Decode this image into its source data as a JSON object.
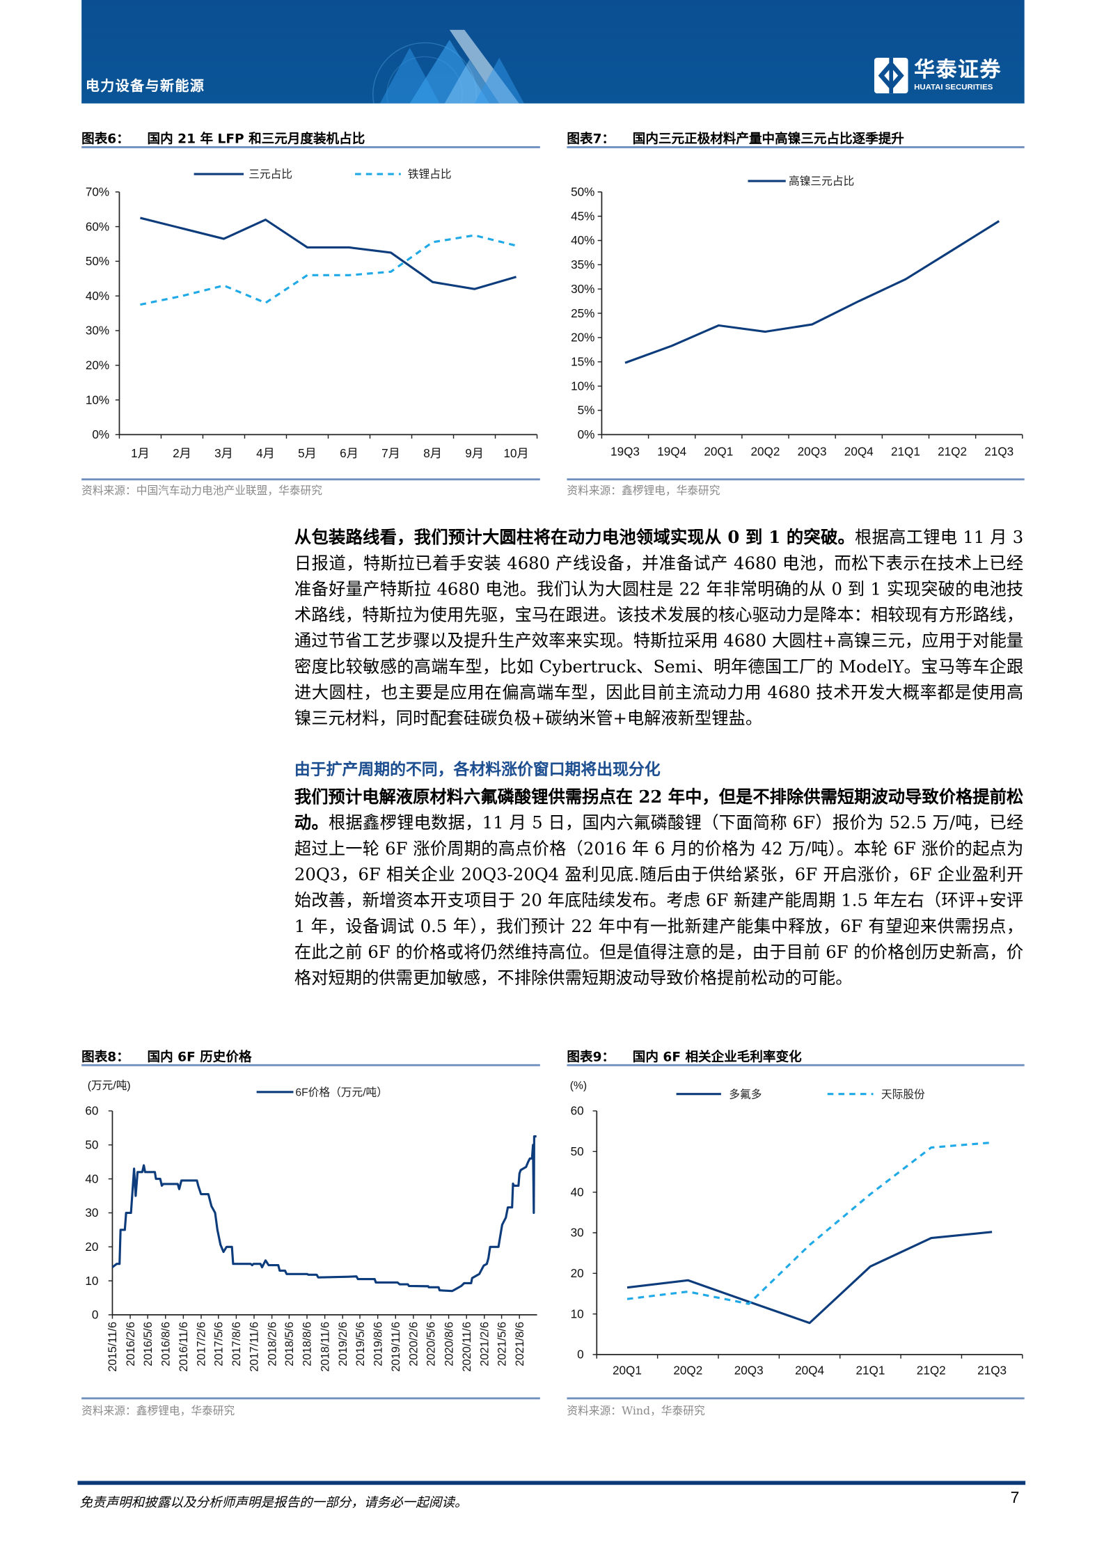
{
  "header": {
    "section": "电力设备与新能源",
    "logo_cn": "华泰证券",
    "logo_en": "HUATAI SECURITIES",
    "band_color": "#0b4f92"
  },
  "figures": [
    {
      "num": "图表6：",
      "title": "国内 21 年 LFP 和三元月度装机占比",
      "source": "资料来源：中国汽车动力电池产业联盟，华泰研究"
    },
    {
      "num": "图表7：",
      "title": "国内三元正极材料产量中高镍三元占比逐季提升",
      "source": "资料来源：鑫椤锂电，华泰研究"
    },
    {
      "num": "图表8：",
      "title": "国内 6F 历史价格",
      "source": "资料来源：鑫椤锂电，华泰研究"
    },
    {
      "num": "图表9：",
      "title": "国内 6F 相关企业毛利率变化",
      "source": "资料来源：Wind，华泰研究"
    }
  ],
  "body": {
    "p1_bold": "从包装路线看，我们预计大圆柱将在动力电池领域实现从 0 到 1 的突破。",
    "p1_text": "根据高工锂电 11 月 3 日报道，特斯拉已着手安装 4680 产线设备，并准备试产 4680 电池，而松下表示在技术上已经准备好量产特斯拉 4680 电池。我们认为大圆柱是 22 年非常明确的从 0 到 1 实现突破的电池技术路线，特斯拉为使用先驱，宝马在跟进。该技术发展的核心驱动力是降本：相较现有方形路线，通过节省工艺步骤以及提升生产效率来实现。特斯拉采用 4680 大圆柱+高镍三元，应用于对能量密度比较敏感的高端车型，比如 Cybertruck、Semi、明年德国工厂的 ModelY。宝马等车企跟进大圆柱，也主要是应用在偏高端车型，因此目前主流动力用 4680 技术开发大概率都是使用高镍三元材料，同时配套硅碳负极+碳纳米管+电解液新型锂盐。",
    "heading": "由于扩产周期的不同，各材料涨价窗口期将出现分化",
    "p2_bold": "我们预计电解液原材料六氟磷酸锂供需拐点在 22 年中，但是不排除供需短期波动导致价格提前松动。",
    "p2_text": "根据鑫椤锂电数据，11 月 5 日，国内六氟磷酸锂（下面简称 6F）报价为 52.5 万/吨，已经超过上一轮 6F 涨价周期的高点价格（2016 年 6 月的价格为 42 万/吨）。本轮 6F 涨价的起点为 20Q3，6F 相关企业 20Q3-20Q4 盈利见底.随后由于供给紧张，6F 开启涨价，6F 企业盈利开始改善，新增资本开支项目于 20 年底陆续发布。考虑 6F 新建产能周期 1.5 年左右（环评+安评 1 年，设备调试 0.5 年），我们预计 22 年中有一批新建产能集中释放，6F 有望迎来供需拐点，在此之前 6F 的价格或将仍然维持高位。但是值得注意的是，由于目前 6F 的价格创历史新高，价格对短期的供需更加敏感，不排除供需短期波动导致价格提前松动的可能。"
  },
  "footer": {
    "disclaimer": "免责声明和披露以及分析师声明是报告的一部分，请务必一起阅读。",
    "page": "7"
  },
  "chart_data": [
    {
      "type": "line",
      "categories": [
        "1月",
        "2月",
        "3月",
        "4月",
        "5月",
        "6月",
        "7月",
        "8月",
        "9月",
        "10月"
      ],
      "ylim": [
        0,
        70
      ],
      "yticks": [
        "0%",
        "10%",
        "20%",
        "30%",
        "40%",
        "50%",
        "60%",
        "70%"
      ],
      "unit": "",
      "legend": "top",
      "grid": false,
      "series": [
        {
          "name": "三元占比",
          "style": "solid",
          "color": "#0d3c7c",
          "values": [
            62.5,
            59.5,
            56.5,
            62,
            54,
            54,
            52.5,
            44,
            42,
            45.5
          ]
        },
        {
          "name": "铁锂占比",
          "style": "dashed",
          "color": "#1fa9e6",
          "values": [
            37.5,
            40,
            43,
            38,
            46,
            46,
            47,
            55.5,
            57.5,
            54.5
          ]
        }
      ]
    },
    {
      "type": "line",
      "categories": [
        "19Q3",
        "19Q4",
        "20Q1",
        "20Q2",
        "20Q3",
        "20Q4",
        "21Q1",
        "21Q2",
        "21Q3"
      ],
      "ylim": [
        0,
        50
      ],
      "yticks": [
        "0%",
        "5%",
        "10%",
        "15%",
        "20%",
        "25%",
        "30%",
        "35%",
        "40%",
        "45%",
        "50%"
      ],
      "unit": "",
      "legend": "top",
      "grid": false,
      "series": [
        {
          "name": "高镍三元占比",
          "style": "solid",
          "color": "#0d3c7c",
          "values": [
            14.8,
            18.3,
            22.5,
            21.2,
            22.7,
            27.5,
            32,
            38,
            44
          ]
        }
      ]
    },
    {
      "type": "line",
      "unit": "(万元/吨)",
      "ylim": [
        0,
        60
      ],
      "yticks": [
        "0",
        "10",
        "20",
        "30",
        "40",
        "50",
        "60"
      ],
      "xlim": [
        "2015/11/6",
        "2021/11/5"
      ],
      "x_ticks": [
        "2015/11/6",
        "2016/2/6",
        "2016/5/6",
        "2016/8/6",
        "2016/11/6",
        "2017/2/6",
        "2017/5/6",
        "2017/8/6",
        "2017/11/6",
        "2018/2/6",
        "2018/5/6",
        "2018/8/6",
        "2018/11/6",
        "2019/2/6",
        "2019/5/6",
        "2019/8/6",
        "2019/11/6",
        "2020/2/6",
        "2020/5/6",
        "2020/8/6",
        "2020/11/6",
        "2021/2/6",
        "2021/5/6",
        "2021/8/6"
      ],
      "legend": "top",
      "grid": false,
      "series": [
        {
          "name": "6F价格（万元/吨）",
          "style": "solid",
          "color": "#0d3c7c",
          "x": [
            "2015/11/6",
            "2015/11/28",
            "2015/12/13",
            "2015/12/18",
            "2016/1/9",
            "2016/1/16",
            "2016/2/10",
            "2016/2/26",
            "2016/3/5",
            "2016/3/15",
            "2016/4/8",
            "2016/4/16",
            "2016/4/23",
            "2016/6/12",
            "2016/6/18",
            "2016/7/10",
            "2016/7/18",
            "2016/7/25",
            "2016/10/8",
            "2016/10/16",
            "2016/10/27",
            "2017/1/15",
            "2017/1/22",
            "2017/2/5",
            "2017/3/15",
            "2017/3/31",
            "2017/4/19",
            "2017/5/1",
            "2017/5/17",
            "2017/6/1",
            "2017/6/17",
            "2017/7/15",
            "2017/7/21",
            "2017/10/19",
            "2017/10/27",
            "2017/11/3",
            "2017/12/9",
            "2017/12/17",
            "2018/1/4",
            "2018/1/20",
            "2018/3/11",
            "2018/3/18",
            "2018/4/15",
            "2018/4/23",
            "2018/8/7",
            "2018/8/13",
            "2018/9/25",
            "2018/10/3",
            "2019/3/8",
            "2019/4/18",
            "2019/4/26",
            "2019/7/21",
            "2019/7/27",
            "2019/11/16",
            "2019/11/27",
            "2020/1/8",
            "2020/1/14",
            "2020/4/22",
            "2020/4/25",
            "2020/6/15",
            "2020/6/20",
            "2020/8/24",
            "2020/9/9",
            "2020/10/10",
            "2020/10/25",
            "2020/11/30",
            "2020/12/5",
            "2021/1/11",
            "2021/2/3",
            "2021/2/19",
            "2021/2/27",
            "2021/3/8",
            "2021/4/20",
            "2021/4/27",
            "2021/5/9",
            "2021/5/28",
            "2021/6/7",
            "2021/6/29",
            "2021/7/4",
            "2021/7/9",
            "2021/8/1",
            "2021/8/6",
            "2021/8/13",
            "2021/9/9",
            "2021/9/20",
            "2021/9/29",
            "2021/10/10",
            "2021/10/15",
            "2021/10/19",
            "2021/10/21",
            "2021/11/2"
          ],
          "values": [
            14,
            15,
            15,
            25,
            25,
            30,
            30,
            43,
            35,
            42,
            42,
            44,
            42,
            42,
            40,
            40,
            38,
            38.5,
            38.5,
            37,
            39.5,
            39.5,
            38,
            35.5,
            35.5,
            32,
            30,
            25,
            20.6,
            18.5,
            20,
            20,
            15,
            15,
            14.6,
            15,
            15,
            14,
            16,
            14.6,
            14.6,
            13,
            13,
            12,
            12,
            11.8,
            11.8,
            11,
            11.2,
            11.3,
            10.5,
            10.5,
            9.5,
            9.5,
            9,
            9,
            8.5,
            8.4,
            8.1,
            8.1,
            7.2,
            7,
            7.5,
            8.5,
            9.3,
            9.3,
            10.8,
            12,
            14.5,
            15,
            16.7,
            20,
            20,
            22.5,
            26.5,
            28.6,
            31.6,
            31.6,
            38.6,
            38,
            38,
            41.6,
            42.6,
            43.5,
            45,
            46,
            46,
            50,
            30,
            52.5,
            52.5
          ]
        }
      ]
    },
    {
      "type": "line",
      "unit": "(%)",
      "categories": [
        "20Q1",
        "20Q2",
        "20Q3",
        "20Q4",
        "21Q1",
        "21Q2",
        "21Q3"
      ],
      "ylim": [
        0,
        60
      ],
      "yticks": [
        "0",
        "10",
        "20",
        "30",
        "40",
        "50",
        "60"
      ],
      "legend": "top",
      "grid": false,
      "series": [
        {
          "name": "多氟多",
          "style": "solid",
          "color": "#0d3c7c",
          "values": [
            16.5,
            18.3,
            13,
            7.8,
            21.7,
            28.7,
            30.2
          ]
        },
        {
          "name": "天际股份",
          "style": "dashed",
          "color": "#1fa9e6",
          "values": [
            13.7,
            15.5,
            12.5,
            27,
            39.5,
            51,
            52.2
          ]
        }
      ]
    }
  ]
}
